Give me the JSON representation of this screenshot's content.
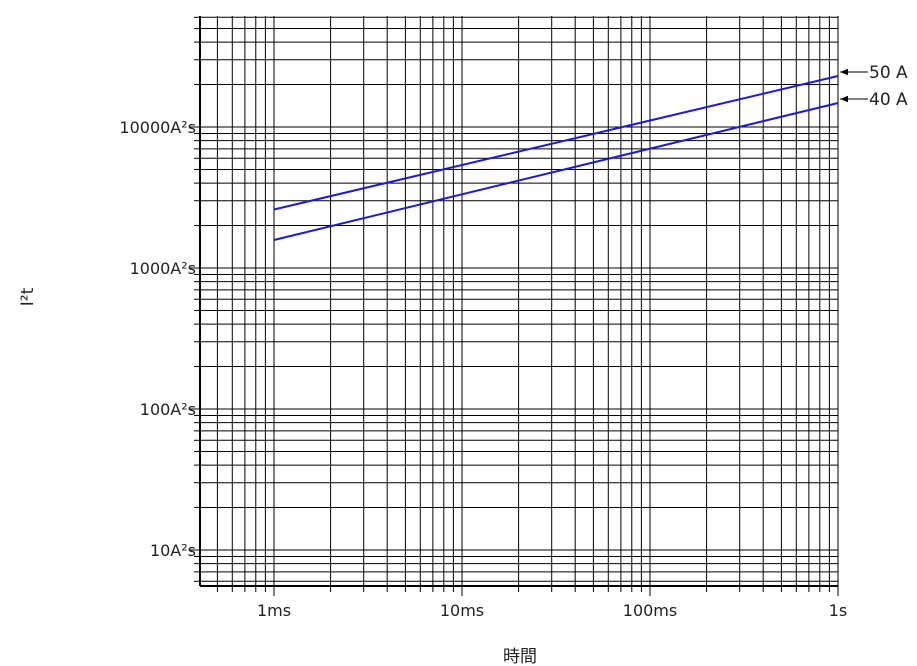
{
  "chart_data": {
    "type": "line",
    "title": "",
    "xlabel": "時間",
    "ylabel": "I²t",
    "x_scale": "log",
    "y_scale": "log",
    "xlim": [
      0.0004,
      1
    ],
    "ylim": [
      6,
      70000
    ],
    "grid": true,
    "x_ticks": [
      {
        "value": 0.001,
        "label": "1ms"
      },
      {
        "value": 0.01,
        "label": "10ms"
      },
      {
        "value": 0.1,
        "label": "100ms"
      },
      {
        "value": 1,
        "label": "1s"
      }
    ],
    "y_ticks": [
      {
        "value": 10,
        "label": "10A²s"
      },
      {
        "value": 100,
        "label": "100A²s"
      },
      {
        "value": 1000,
        "label": "1000A²s"
      },
      {
        "value": 10000,
        "label": "10000A²s"
      }
    ],
    "series": [
      {
        "name": "50 A",
        "color": "#1a1adb",
        "x": [
          0.001,
          1
        ],
        "y": [
          2600,
          23000
        ]
      },
      {
        "name": "40 A",
        "color": "#1a1adb",
        "x": [
          0.001,
          1
        ],
        "y": [
          1580,
          14800
        ]
      }
    ]
  }
}
